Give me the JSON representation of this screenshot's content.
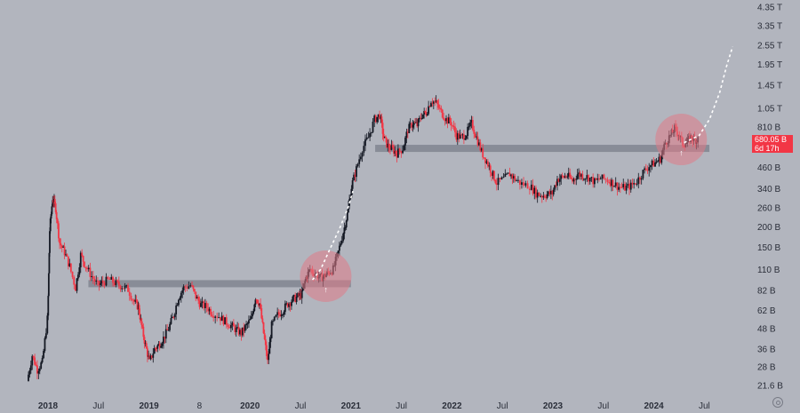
{
  "chart_data": {
    "type": "candlestick",
    "y_scale": "log",
    "y_ticks": [
      "4.35 T",
      "3.35 T",
      "2.55 T",
      "1.95 T",
      "1.45 T",
      "1.05 T",
      "810 B",
      "680.05 B",
      "460 B",
      "340 B",
      "260 B",
      "200 B",
      "150 B",
      "110 B",
      "82 B",
      "62 B",
      "48 B",
      "36 B",
      "28 B",
      "21.6 B"
    ],
    "x_ticks": [
      "2018",
      "Jul",
      "2019",
      "8",
      "2020",
      "Jul",
      "2021",
      "Jul",
      "2022",
      "Jul",
      "2023",
      "Jul",
      "2024",
      "Jul"
    ],
    "bold_x_ticks": [
      "2018",
      "2019",
      "2020",
      "2021",
      "2022",
      "2023",
      "2024"
    ],
    "current_price": "680.05 B",
    "countdown": "6d 17h",
    "colors": {
      "up": "#131722",
      "down": "#f23645",
      "background": "#b2b5be",
      "zone": "#808591",
      "circle": "#e07a86"
    },
    "series": [
      {
        "values_B": [
          [
            2017.8,
            23
          ],
          [
            2017.85,
            33
          ],
          [
            2017.9,
            27
          ],
          [
            2017.95,
            30
          ],
          [
            2018.0,
            55
          ],
          [
            2018.02,
            190
          ],
          [
            2018.05,
            300
          ],
          [
            2018.08,
            260
          ],
          [
            2018.12,
            160
          ],
          [
            2018.17,
            140
          ],
          [
            2018.22,
            115
          ],
          [
            2018.28,
            85
          ],
          [
            2018.33,
            135
          ],
          [
            2018.38,
            115
          ],
          [
            2018.44,
            100
          ],
          [
            2018.5,
            88
          ],
          [
            2018.55,
            92
          ],
          [
            2018.62,
            95
          ],
          [
            2018.68,
            90
          ],
          [
            2018.74,
            87
          ],
          [
            2018.8,
            83
          ],
          [
            2018.86,
            70
          ],
          [
            2018.9,
            65
          ],
          [
            2018.93,
            50
          ],
          [
            2018.97,
            38
          ],
          [
            2019.01,
            30
          ],
          [
            2019.06,
            36
          ],
          [
            2019.1,
            38
          ],
          [
            2019.15,
            42
          ],
          [
            2019.2,
            48
          ],
          [
            2019.25,
            58
          ],
          [
            2019.3,
            75
          ],
          [
            2019.35,
            85
          ],
          [
            2019.42,
            88
          ],
          [
            2019.47,
            75
          ],
          [
            2019.52,
            67
          ],
          [
            2019.58,
            65
          ],
          [
            2019.63,
            60
          ],
          [
            2019.7,
            57
          ],
          [
            2019.76,
            53
          ],
          [
            2019.82,
            50
          ],
          [
            2019.87,
            47
          ],
          [
            2019.92,
            45
          ],
          [
            2019.97,
            50
          ],
          [
            2020.02,
            55
          ],
          [
            2020.06,
            75
          ],
          [
            2020.1,
            68
          ],
          [
            2020.14,
            45
          ],
          [
            2020.18,
            30
          ],
          [
            2020.22,
            50
          ],
          [
            2020.28,
            58
          ],
          [
            2020.33,
            62
          ],
          [
            2020.38,
            68
          ],
          [
            2020.43,
            72
          ],
          [
            2020.48,
            75
          ],
          [
            2020.52,
            78
          ],
          [
            2020.56,
            98
          ],
          [
            2020.6,
            110
          ],
          [
            2020.65,
            104
          ],
          [
            2020.7,
            98
          ],
          [
            2020.74,
            100
          ],
          [
            2020.78,
            105
          ],
          [
            2020.83,
            110
          ],
          [
            2020.88,
            140
          ],
          [
            2020.93,
            185
          ],
          [
            2020.97,
            240
          ],
          [
            2021.01,
            350
          ],
          [
            2021.06,
            450
          ],
          [
            2021.12,
            600
          ],
          [
            2021.18,
            700
          ],
          [
            2021.24,
            900
          ],
          [
            2021.29,
            960
          ],
          [
            2021.33,
            700
          ],
          [
            2021.37,
            620
          ],
          [
            2021.42,
            590
          ],
          [
            2021.46,
            560
          ],
          [
            2021.52,
            600
          ],
          [
            2021.57,
            780
          ],
          [
            2021.62,
            860
          ],
          [
            2021.66,
            830
          ],
          [
            2021.71,
            960
          ],
          [
            2021.75,
            990
          ],
          [
            2021.8,
            1180
          ],
          [
            2021.85,
            1130
          ],
          [
            2021.9,
            1000
          ],
          [
            2021.95,
            900
          ],
          [
            2022.0,
            860
          ],
          [
            2022.05,
            720
          ],
          [
            2022.1,
            700
          ],
          [
            2022.15,
            740
          ],
          [
            2022.2,
            850
          ],
          [
            2022.25,
            700
          ],
          [
            2022.3,
            570
          ],
          [
            2022.35,
            500
          ],
          [
            2022.4,
            430
          ],
          [
            2022.45,
            370
          ],
          [
            2022.52,
            390
          ],
          [
            2022.58,
            420
          ],
          [
            2022.63,
            390
          ],
          [
            2022.7,
            365
          ],
          [
            2022.78,
            355
          ],
          [
            2022.84,
            320
          ],
          [
            2022.9,
            310
          ],
          [
            2022.95,
            315
          ],
          [
            2023.0,
            320
          ],
          [
            2023.05,
            390
          ],
          [
            2023.1,
            400
          ],
          [
            2023.15,
            410
          ],
          [
            2023.2,
            380
          ],
          [
            2023.25,
            420
          ],
          [
            2023.3,
            410
          ],
          [
            2023.36,
            400
          ],
          [
            2023.42,
            375
          ],
          [
            2023.48,
            395
          ],
          [
            2023.55,
            385
          ],
          [
            2023.6,
            370
          ],
          [
            2023.66,
            350
          ],
          [
            2023.72,
            345
          ],
          [
            2023.78,
            355
          ],
          [
            2023.84,
            380
          ],
          [
            2023.9,
            430
          ],
          [
            2023.96,
            470
          ],
          [
            2024.02,
            490
          ],
          [
            2024.07,
            520
          ],
          [
            2024.12,
            650
          ],
          [
            2024.17,
            720
          ],
          [
            2024.21,
            790
          ],
          [
            2024.25,
            740
          ],
          [
            2024.29,
            640
          ],
          [
            2024.33,
            650
          ],
          [
            2024.37,
            700
          ],
          [
            2024.41,
            680
          ],
          [
            2024.44,
            680
          ]
        ]
      }
    ],
    "projection_B": [
      [
        2020.62,
        95
      ],
      [
        2020.7,
        110
      ],
      [
        2020.8,
        150
      ],
      [
        2020.88,
        190
      ],
      [
        2020.97,
        260
      ],
      [
        2021.02,
        330
      ]
    ],
    "projection2_B": [
      [
        2024.3,
        650
      ],
      [
        2024.45,
        720
      ],
      [
        2024.55,
        900
      ],
      [
        2024.65,
        1300
      ],
      [
        2024.72,
        1900
      ],
      [
        2024.78,
        2500
      ]
    ],
    "zones": [
      {
        "from": 2018.4,
        "to": 2021.0,
        "value_B": 90
      },
      {
        "from": 2021.24,
        "to": 2024.55,
        "value_B": 600
      }
    ],
    "highlights": [
      {
        "center": [
          2020.75,
          100
        ]
      },
      {
        "center": [
          2024.27,
          680
        ]
      }
    ]
  }
}
